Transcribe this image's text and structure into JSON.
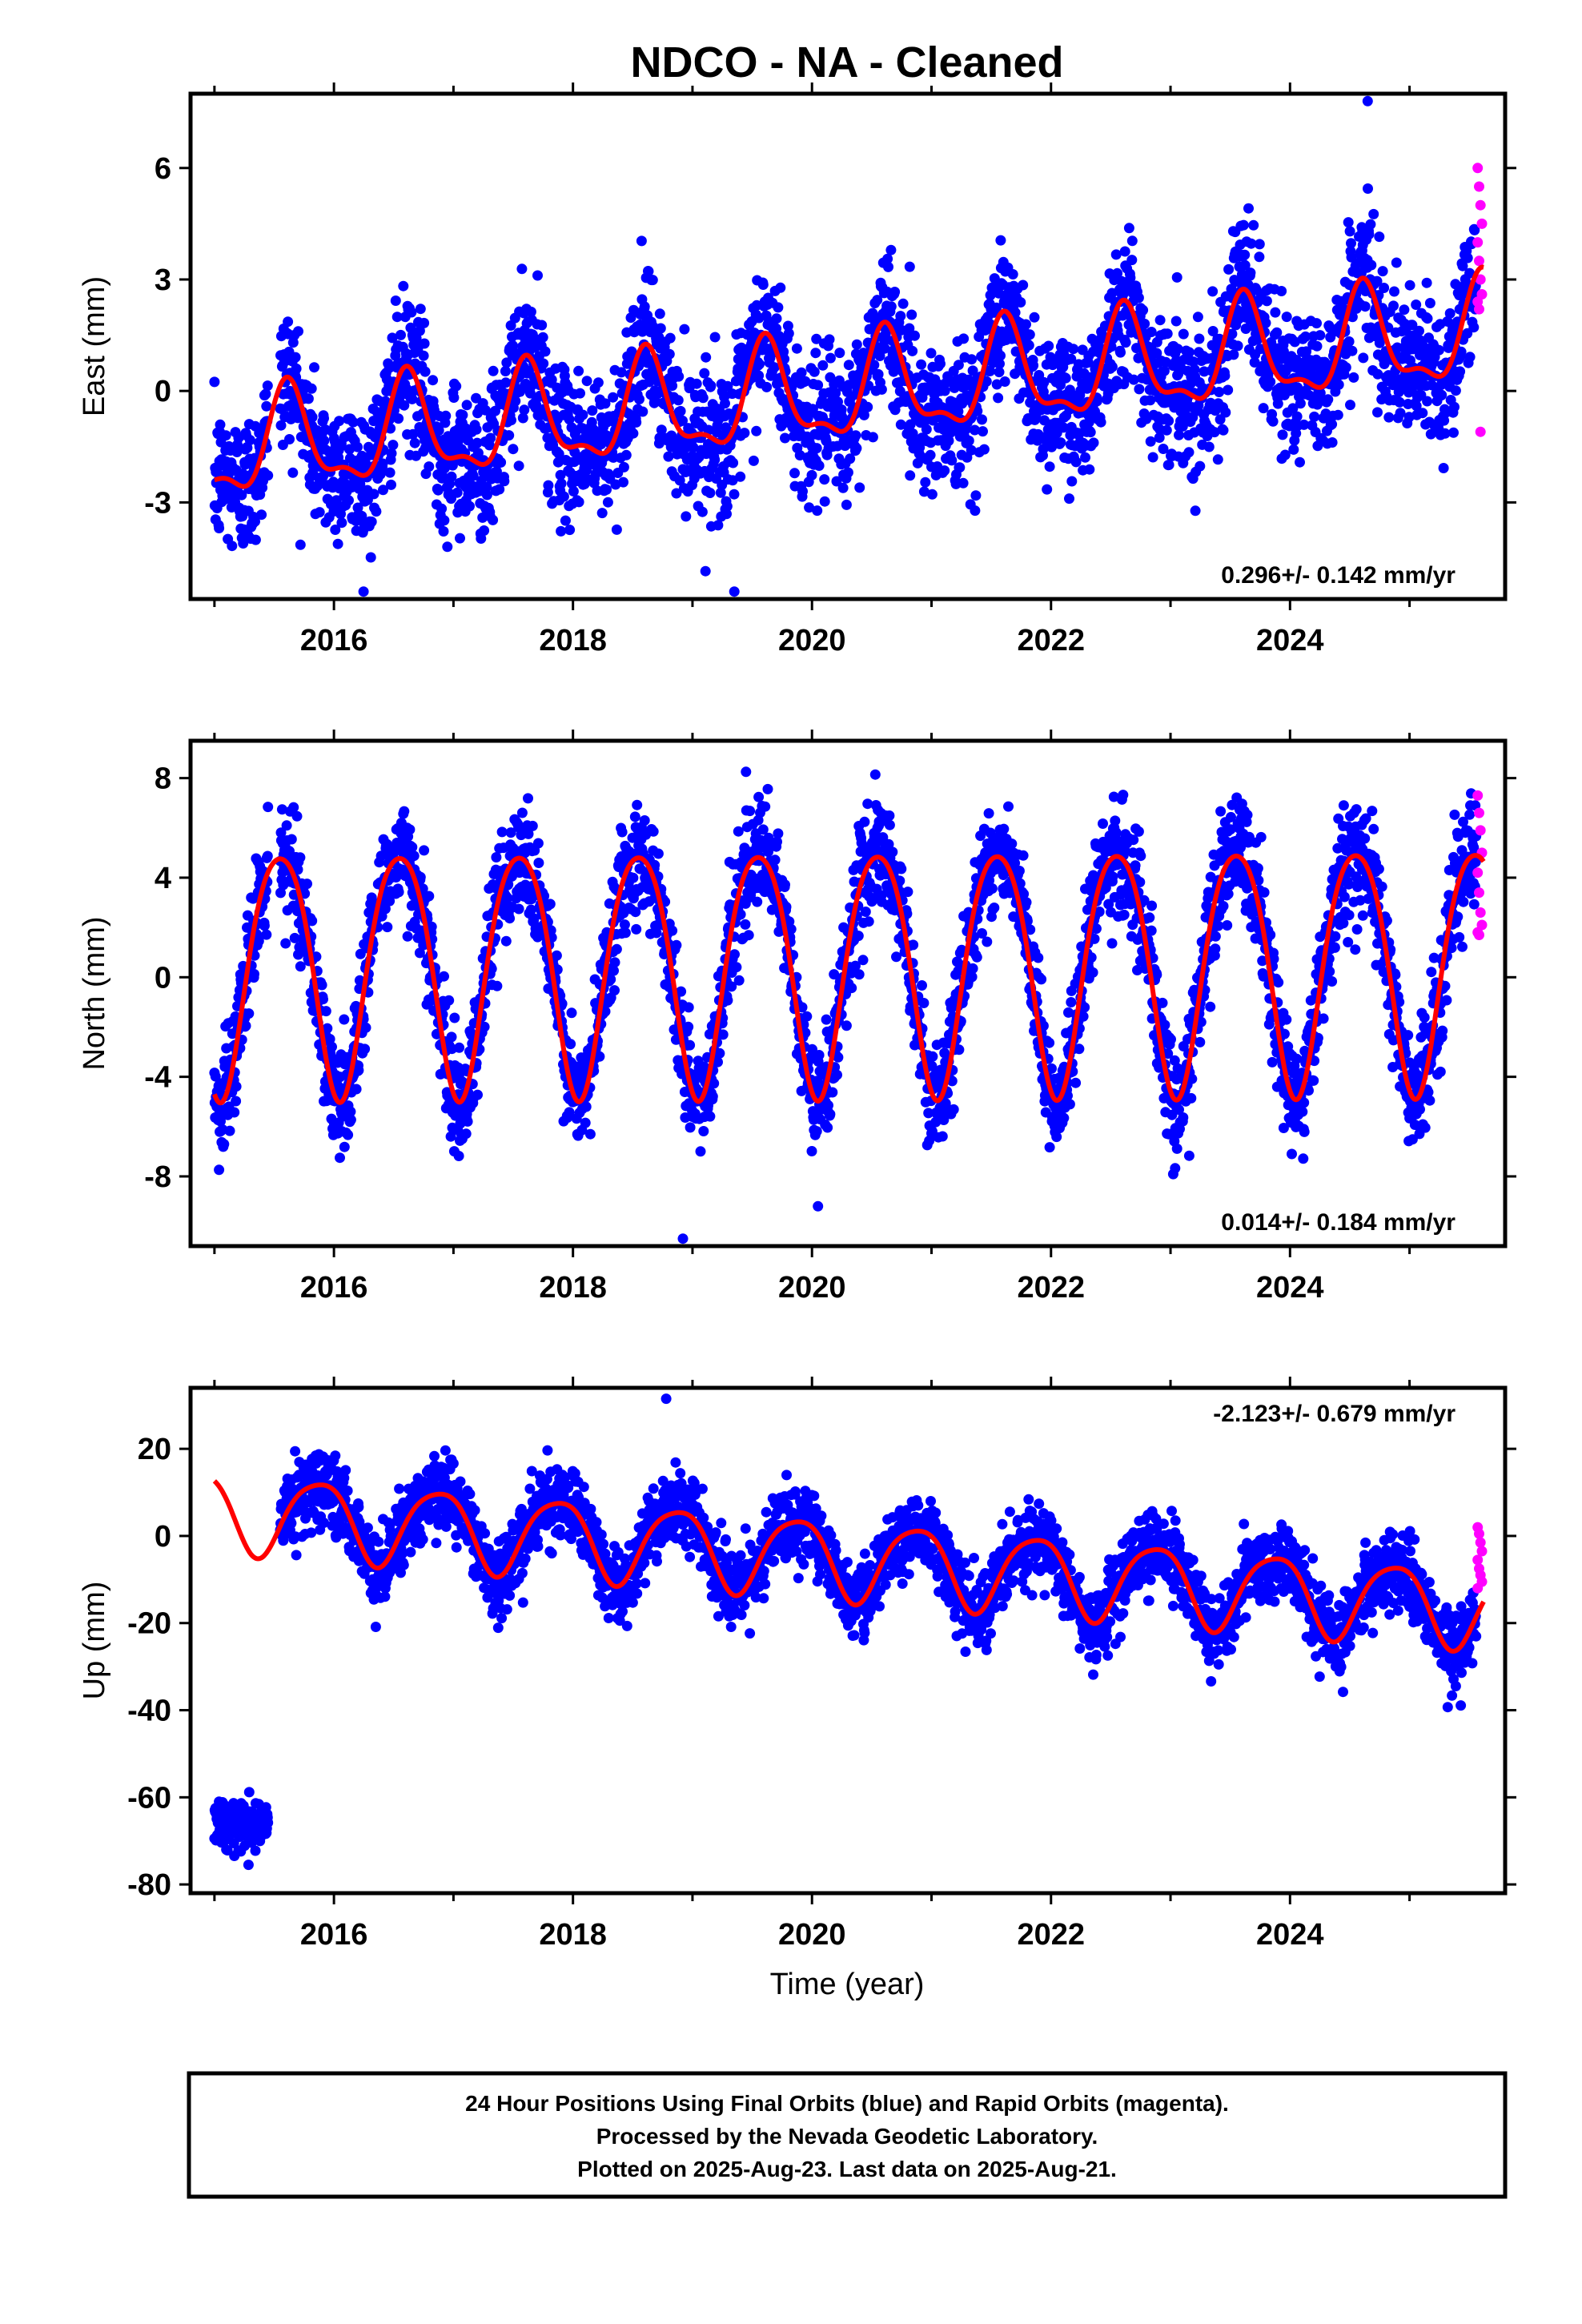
{
  "colors": {
    "final_orbits": "#0000ff",
    "rapid_orbits": "#ff00ff",
    "model_fit": "#ff0000",
    "frame": "#000000",
    "background": "#ffffff"
  },
  "figure": {
    "title": "NDCO  - NA - Cleaned",
    "xlabel": "Time (year)",
    "footer": [
      "24 Hour Positions Using Final Orbits (blue) and Rapid Orbits (magenta).",
      "Processed by the Nevada Geodetic Laboratory.",
      "Plotted on 2025-Aug-23. Last data on 2025-Aug-21."
    ]
  },
  "chart_data": [
    {
      "type": "scatter",
      "component": "east",
      "ylabel": "East (mm)",
      "rate_label": "0.296+/- 0.142 mm/yr",
      "rate_position": "bottom-right",
      "xlim": [
        2014.8,
        2025.8
      ],
      "ylim": [
        -5.6,
        8.0
      ],
      "xticks": [
        2016,
        2018,
        2020,
        2022,
        2024
      ],
      "yticks": [
        -3,
        0,
        3,
        6
      ],
      "grid": false,
      "trend": {
        "value_at_2015": -1.6,
        "rate": 0.296
      },
      "seasonal": {
        "annual_amplitude": 1.3,
        "annual_peak_phase": 0.62,
        "semiannual_amplitude": 0.5,
        "semiannual_phase": 0.1
      },
      "scatter_sigma": 0.95,
      "rapid_orbit_values": [
        6.0,
        5.5,
        5.0,
        4.5,
        4.0,
        3.5,
        3.0,
        2.6,
        2.4,
        2.2,
        -1.1
      ],
      "gap_x": [
        2015.45,
        2015.55
      ],
      "outliers": [
        {
          "x": 2024.65,
          "y": 7.8
        },
        {
          "x": 2019.35,
          "y": -5.4
        }
      ]
    },
    {
      "type": "scatter",
      "component": "north",
      "ylabel": "North (mm)",
      "rate_label": "0.014+/- 0.184 mm/yr",
      "rate_position": "bottom-right",
      "xlim": [
        2014.8,
        2025.8
      ],
      "ylim": [
        -10.8,
        9.5
      ],
      "xticks": [
        2016,
        2018,
        2020,
        2022,
        2024
      ],
      "yticks": [
        -8,
        -4,
        0,
        4,
        8
      ],
      "grid": false,
      "trend": {
        "value_at_2015": 0.45,
        "rate": 0.014
      },
      "seasonal": {
        "annual_amplitude": 4.9,
        "annual_peak_phase": 0.55,
        "semiannual_amplitude": 0.6,
        "semiannual_phase": 0.3
      },
      "scatter_sigma": 1.1,
      "rapid_orbit_values": [
        7.3,
        6.6,
        5.9,
        5.0,
        4.2,
        3.4,
        2.6,
        2.1,
        1.8,
        1.7
      ],
      "gap_x": [
        2015.45,
        2015.55
      ],
      "outliers": [
        {
          "x": 2018.92,
          "y": -10.5
        },
        {
          "x": 2020.05,
          "y": -9.2
        }
      ]
    },
    {
      "type": "scatter",
      "component": "up",
      "ylabel": "Up (mm)",
      "rate_label": "-2.123+/- 0.679 mm/yr",
      "rate_position": "top-right",
      "xlim": [
        2014.8,
        2025.8
      ],
      "ylim": [
        -82,
        34
      ],
      "xticks": [
        2016,
        2018,
        2020,
        2022,
        2024
      ],
      "yticks": [
        -80,
        -60,
        -40,
        -20,
        0,
        20
      ],
      "grid": false,
      "trend": {
        "value_at_2015": 6.0,
        "rate": -2.123
      },
      "seasonal": {
        "annual_amplitude": 9.0,
        "annual_peak_phase": 0.87,
        "semiannual_amplitude": 1.5,
        "semiannual_phase": 0.1
      },
      "scatter_sigma": 4.2,
      "early_offset_segment": {
        "x_range": [
          2015.0,
          2015.45
        ],
        "center": -66.0,
        "spread": 4.5
      },
      "rapid_orbit_values": [
        2.0,
        0.5,
        -1.5,
        -3.5,
        -5.5,
        -7.5,
        -9.0,
        -10.5,
        -12.0
      ],
      "gap_x": [
        2015.45,
        2015.55
      ],
      "outliers": [
        {
          "x": 2018.78,
          "y": 31.5
        }
      ]
    }
  ]
}
